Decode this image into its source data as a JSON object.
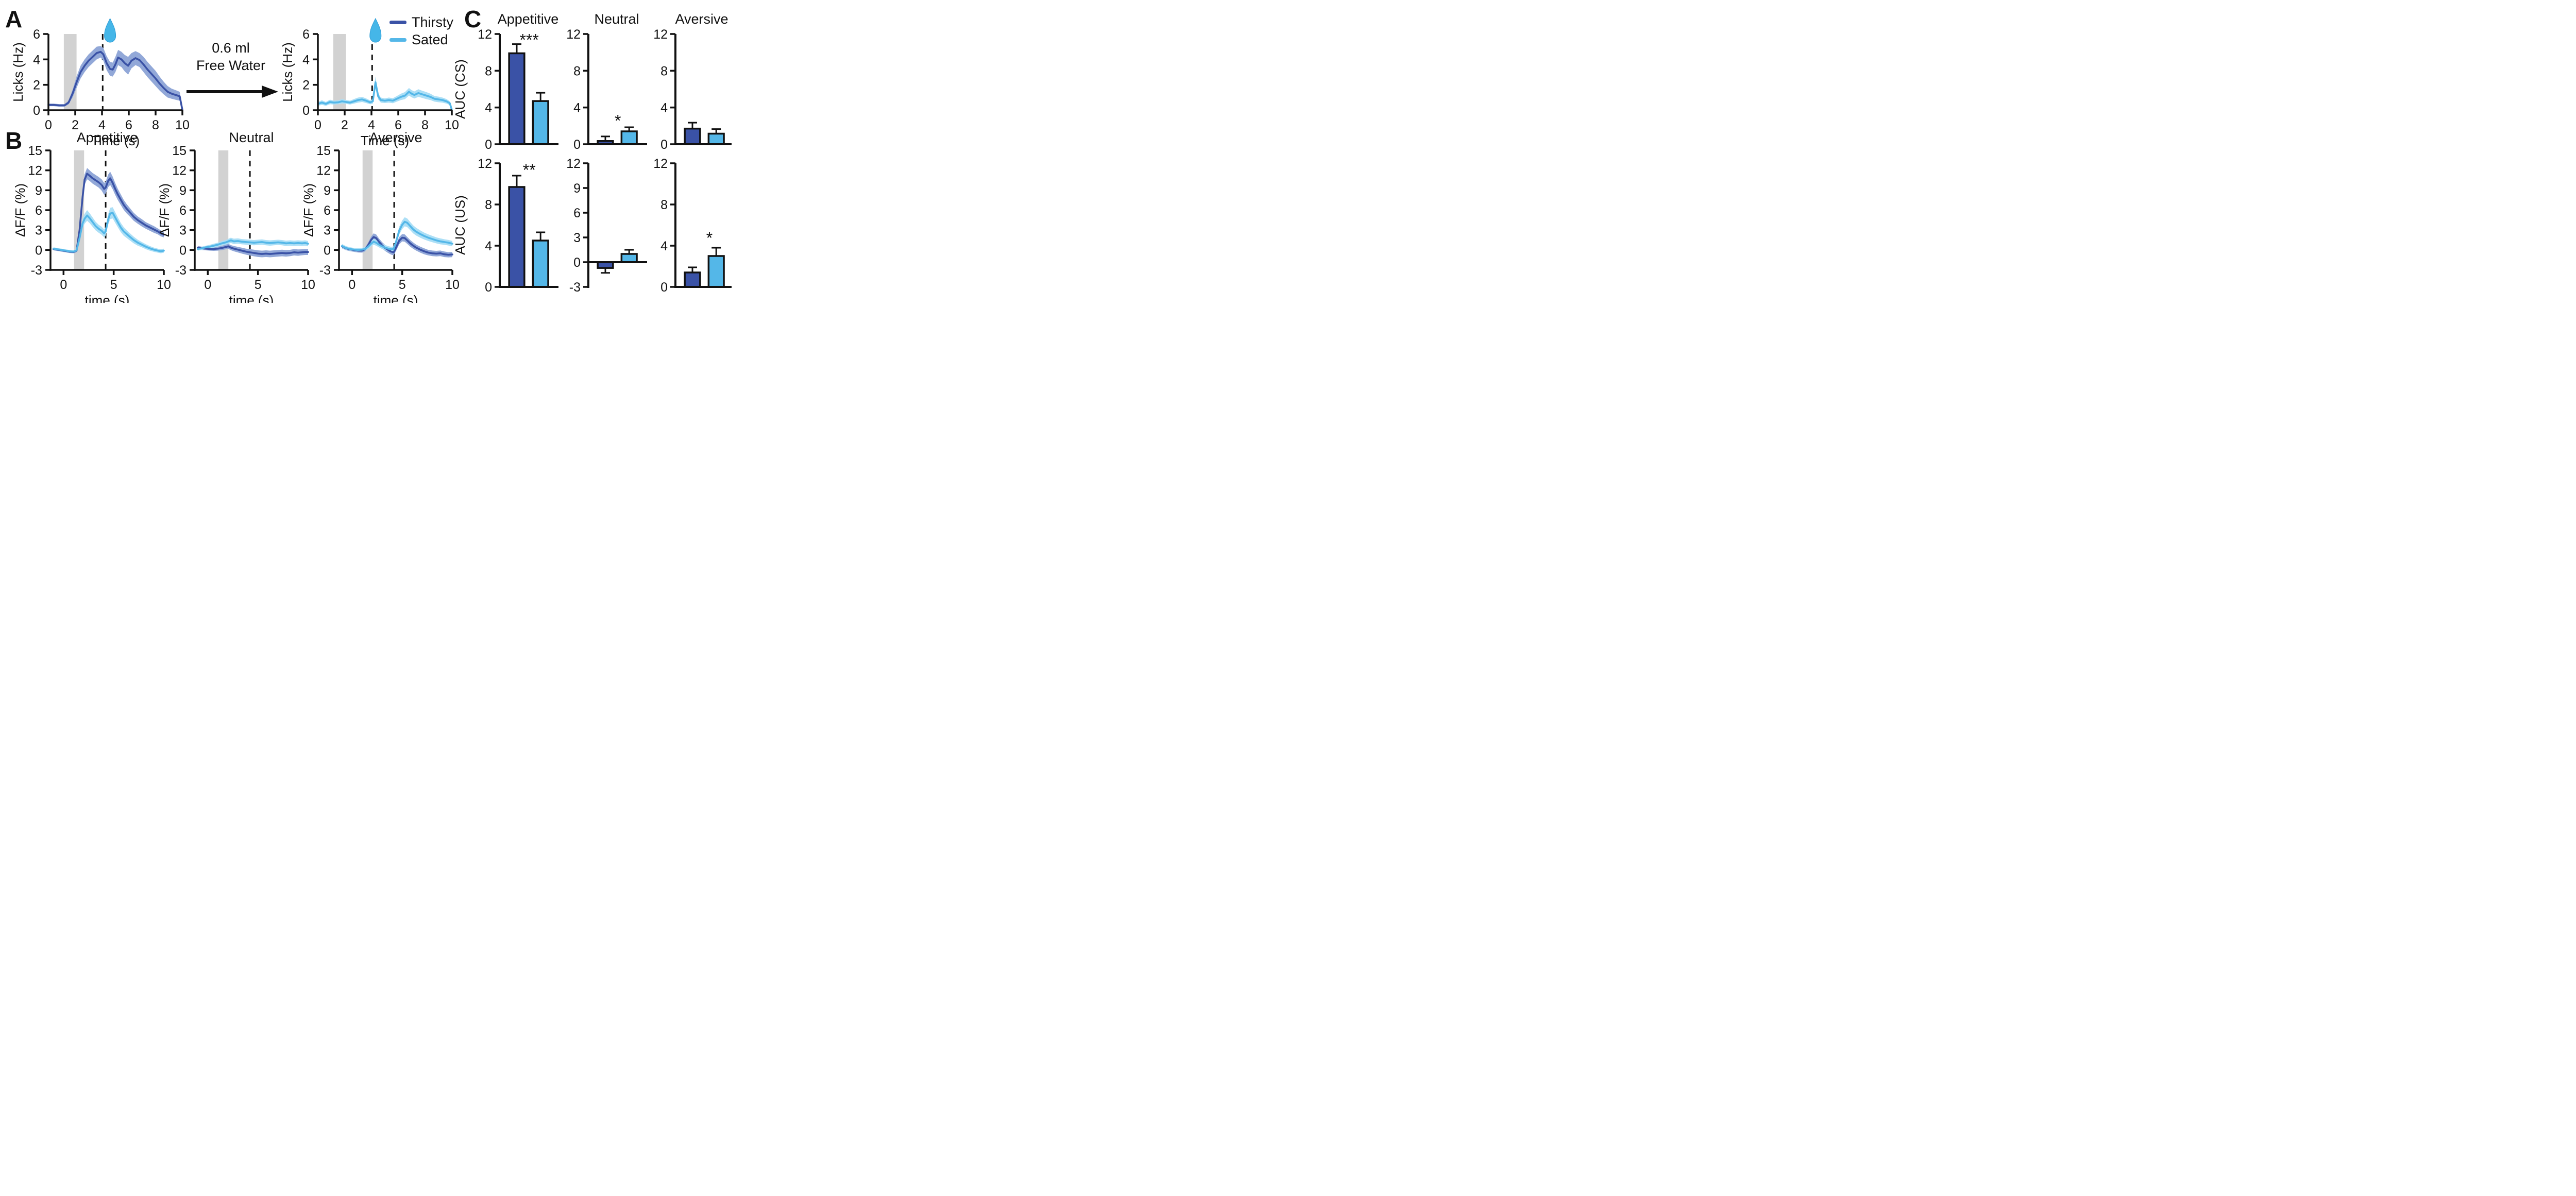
{
  "panels": {
    "a": {
      "label": "A"
    },
    "b": {
      "label": "B",
      "titles": [
        "Appetitive",
        "Neutral",
        "Aversive"
      ]
    },
    "c": {
      "label": "C",
      "titles": [
        "Appetitive",
        "Neutral",
        "Aversive"
      ],
      "row_labels": [
        "AUC (CS)",
        "AUC (US)"
      ]
    }
  },
  "transition": {
    "line1": "0.6 ml",
    "line2": "Free Water"
  },
  "legend": {
    "items": [
      {
        "label": "Thirsty",
        "color": "#3A52A6"
      },
      {
        "label": "Sated",
        "color": "#54B7E8"
      }
    ]
  },
  "colors": {
    "thirsty": "#3A52A6",
    "thirsty_band": "#92A8D8",
    "sated": "#54B7E8",
    "sated_band": "#ACDFF6",
    "cs_band": "#D2D2D2",
    "axis": "#111111",
    "droplet": "#45B6E8"
  },
  "chart_data": [
    {
      "id": "licks-thirsty",
      "type": "line",
      "title": "",
      "xlabel": "Time (s)",
      "ylabel": "Licks (Hz)",
      "xlim": [
        0,
        10
      ],
      "ylim": [
        0,
        6
      ],
      "xticks": [
        0,
        2,
        4,
        6,
        8,
        10
      ],
      "yticks": [
        0,
        2,
        4,
        6
      ],
      "cs_window": [
        1.15,
        2.1
      ],
      "us_line": 4.05,
      "droplet_t": 4.6,
      "x": [
        0,
        0.4,
        0.8,
        1.2,
        1.5,
        1.8,
        2.1,
        2.4,
        2.7,
        3,
        3.3,
        3.6,
        3.9,
        4.1,
        4.35,
        4.6,
        4.8,
        5,
        5.2,
        5.45,
        5.7,
        5.95,
        6.2,
        6.5,
        6.8,
        7.1,
        7.4,
        7.7,
        8,
        8.3,
        8.6,
        8.9,
        9.2,
        9.5,
        9.8,
        10
      ],
      "series": [
        {
          "name": "Thirsty",
          "color_key": "thirsty",
          "y": [
            0.42,
            0.42,
            0.38,
            0.38,
            0.6,
            1.3,
            2.2,
            3,
            3.5,
            3.9,
            4.2,
            4.5,
            4.6,
            4.4,
            3.7,
            3.25,
            3.2,
            3.6,
            4.15,
            4,
            3.7,
            3.5,
            3.9,
            4.1,
            3.95,
            3.6,
            3.2,
            2.85,
            2.5,
            2.1,
            1.75,
            1.45,
            1.3,
            1.2,
            1.1,
            0.02
          ],
          "sem": [
            0.1,
            0.1,
            0.1,
            0.1,
            0.15,
            0.3,
            0.45,
            0.5,
            0.5,
            0.5,
            0.5,
            0.5,
            0.45,
            0.5,
            0.55,
            0.55,
            0.55,
            0.6,
            0.6,
            0.6,
            0.65,
            0.7,
            0.6,
            0.55,
            0.55,
            0.6,
            0.6,
            0.6,
            0.6,
            0.55,
            0.5,
            0.45,
            0.4,
            0.38,
            0.35,
            0.02
          ]
        }
      ]
    },
    {
      "id": "licks-sated",
      "type": "line",
      "title": "",
      "xlabel": "Time (s)",
      "ylabel": "Licks (Hz)",
      "xlim": [
        0,
        10
      ],
      "ylim": [
        0,
        6
      ],
      "xticks": [
        0,
        2,
        4,
        6,
        8,
        10
      ],
      "yticks": [
        0,
        2,
        4,
        6
      ],
      "cs_window": [
        1.15,
        2.1
      ],
      "us_line": 4.05,
      "droplet_t": 4.3,
      "x": [
        0,
        0.3,
        0.6,
        0.9,
        1.2,
        1.5,
        1.8,
        2.1,
        2.4,
        2.7,
        3,
        3.3,
        3.6,
        3.9,
        4.1,
        4.3,
        4.5,
        4.7,
        5,
        5.3,
        5.6,
        5.9,
        6.2,
        6.5,
        6.8,
        7,
        7.2,
        7.5,
        7.8,
        8.1,
        8.4,
        8.7,
        9,
        9.3,
        9.6,
        9.85,
        10
      ],
      "series": [
        {
          "name": "Sated",
          "color_key": "sated",
          "y": [
            0.5,
            0.6,
            0.5,
            0.65,
            0.6,
            0.62,
            0.7,
            0.65,
            0.6,
            0.7,
            0.8,
            0.85,
            0.75,
            0.62,
            0.7,
            2.2,
            1.1,
            0.8,
            0.75,
            0.8,
            0.75,
            0.9,
            1.05,
            1.15,
            1.45,
            1.3,
            1.2,
            1.35,
            1.25,
            1.15,
            1.05,
            0.9,
            0.85,
            0.8,
            0.7,
            0.55,
            0.03
          ],
          "sem": [
            0.15,
            0.18,
            0.15,
            0.18,
            0.15,
            0.15,
            0.18,
            0.15,
            0.15,
            0.18,
            0.2,
            0.2,
            0.18,
            0.15,
            0.18,
            0.45,
            0.25,
            0.2,
            0.18,
            0.2,
            0.2,
            0.22,
            0.25,
            0.28,
            0.3,
            0.28,
            0.28,
            0.3,
            0.28,
            0.28,
            0.25,
            0.22,
            0.22,
            0.2,
            0.18,
            0.15,
            0.03
          ]
        }
      ]
    },
    {
      "id": "dff-appetitive",
      "type": "line",
      "title": "Appetitive",
      "xlabel": "time (s)",
      "ylabel": "ΔF/F (%)",
      "xlim": [
        -1.3,
        10
      ],
      "ylim": [
        -3,
        15
      ],
      "xticks": [
        0,
        5,
        10
      ],
      "yticks": [
        -3,
        0,
        3,
        6,
        9,
        12,
        15
      ],
      "cs_window": [
        1.05,
        2.05
      ],
      "us_line": 4.2,
      "droplet_t": null,
      "x": [
        -1,
        -0.6,
        -0.2,
        0.2,
        0.6,
        1,
        1.3,
        1.6,
        1.9,
        2.1,
        2.35,
        2.6,
        2.9,
        3.2,
        3.5,
        3.8,
        4.05,
        4.2,
        4.45,
        4.65,
        4.9,
        5.15,
        5.4,
        5.7,
        6,
        6.3,
        6.6,
        7,
        7.4,
        7.8,
        8.2,
        8.6,
        9,
        9.4,
        9.7,
        10
      ],
      "series": [
        {
          "name": "Thirsty",
          "color_key": "thirsty",
          "y": [
            0.15,
            0.05,
            -0.05,
            -0.15,
            -0.25,
            -0.3,
            -0.1,
            3,
            8,
            10.6,
            11.5,
            11.2,
            10.8,
            10.5,
            10.2,
            9.8,
            9.2,
            9.4,
            10.4,
            10.8,
            10.1,
            9.2,
            8.4,
            7.6,
            6.8,
            6.2,
            5.7,
            5,
            4.5,
            4.1,
            3.7,
            3.4,
            3.1,
            2.8,
            2.5,
            2.3
          ],
          "sem": [
            0.2,
            0.2,
            0.2,
            0.2,
            0.2,
            0.2,
            0.25,
            0.6,
            0.8,
            0.8,
            0.85,
            0.8,
            0.8,
            0.8,
            0.8,
            0.85,
            0.9,
            0.9,
            0.95,
            1,
            0.95,
            0.9,
            0.85,
            0.8,
            0.75,
            0.7,
            0.65,
            0.6,
            0.55,
            0.55,
            0.5,
            0.5,
            0.5,
            0.45,
            0.45,
            0.4
          ]
        },
        {
          "name": "Sated",
          "color_key": "sated",
          "y": [
            0.2,
            0.1,
            0,
            -0.1,
            -0.2,
            -0.25,
            -0.05,
            1.8,
            4,
            4.7,
            5.2,
            4.8,
            4.2,
            3.6,
            3.2,
            2.9,
            2.5,
            2.8,
            4.6,
            5.5,
            5.6,
            4.9,
            4.2,
            3.4,
            2.8,
            2.4,
            2,
            1.5,
            1.1,
            0.8,
            0.5,
            0.25,
            0.05,
            -0.1,
            -0.2,
            -0.1
          ],
          "sem": [
            0.2,
            0.2,
            0.2,
            0.2,
            0.2,
            0.2,
            0.25,
            0.5,
            0.7,
            0.75,
            0.8,
            0.75,
            0.7,
            0.65,
            0.6,
            0.6,
            0.6,
            0.65,
            0.8,
            0.85,
            0.85,
            0.8,
            0.75,
            0.7,
            0.65,
            0.6,
            0.55,
            0.5,
            0.45,
            0.4,
            0.38,
            0.35,
            0.32,
            0.3,
            0.3,
            0.3
          ]
        }
      ]
    },
    {
      "id": "dff-neutral",
      "type": "line",
      "title": "Neutral",
      "xlabel": "time (s)",
      "ylabel": "ΔF/F (%)",
      "xlim": [
        -1.3,
        10
      ],
      "ylim": [
        -3,
        15
      ],
      "xticks": [
        0,
        5,
        10
      ],
      "yticks": [
        -3,
        0,
        3,
        6,
        9,
        12,
        15
      ],
      "cs_window": [
        1.05,
        2.05
      ],
      "us_line": 4.2,
      "droplet_t": null,
      "x": [
        -1,
        -0.6,
        -0.2,
        0.2,
        0.6,
        1,
        1.4,
        1.8,
        2.05,
        2.3,
        2.6,
        3,
        3.4,
        3.8,
        4.2,
        4.6,
        5,
        5.4,
        5.8,
        6.2,
        6.6,
        7,
        7.4,
        7.8,
        8.2,
        8.6,
        9,
        9.4,
        9.7,
        10
      ],
      "series": [
        {
          "name": "Thirsty",
          "color_key": "thirsty",
          "y": [
            0.35,
            0.25,
            0.2,
            0.15,
            0.15,
            0.2,
            0.3,
            0.45,
            0.55,
            0.35,
            0.2,
            0.05,
            -0.1,
            -0.25,
            -0.35,
            -0.45,
            -0.55,
            -0.6,
            -0.55,
            -0.6,
            -0.55,
            -0.5,
            -0.45,
            -0.5,
            -0.45,
            -0.35,
            -0.4,
            -0.35,
            -0.3,
            -0.3
          ],
          "sem": [
            0.25,
            0.25,
            0.25,
            0.25,
            0.28,
            0.3,
            0.32,
            0.35,
            0.38,
            0.38,
            0.4,
            0.42,
            0.45,
            0.45,
            0.48,
            0.5,
            0.5,
            0.5,
            0.5,
            0.5,
            0.5,
            0.5,
            0.5,
            0.5,
            0.48,
            0.48,
            0.48,
            0.45,
            0.45,
            0.45
          ]
        },
        {
          "name": "Sated",
          "color_key": "sated",
          "y": [
            0.15,
            0.25,
            0.4,
            0.5,
            0.65,
            0.8,
            1,
            1.15,
            1.3,
            1.45,
            1.3,
            1.35,
            1.25,
            1.2,
            1.15,
            1.1,
            1.15,
            1.2,
            1.1,
            1.05,
            1.1,
            1.15,
            1.1,
            1,
            1.05,
            1,
            1.05,
            1,
            1.05,
            0.95
          ],
          "sem": [
            0.25,
            0.25,
            0.25,
            0.28,
            0.3,
            0.3,
            0.32,
            0.35,
            0.38,
            0.4,
            0.4,
            0.4,
            0.4,
            0.4,
            0.4,
            0.4,
            0.4,
            0.4,
            0.4,
            0.4,
            0.4,
            0.4,
            0.4,
            0.4,
            0.4,
            0.4,
            0.4,
            0.4,
            0.4,
            0.4
          ]
        }
      ]
    },
    {
      "id": "dff-aversive",
      "type": "line",
      "title": "Aversive",
      "xlabel": "time (s)",
      "ylabel": "ΔF/F (%)",
      "xlim": [
        -1.3,
        10
      ],
      "ylim": [
        -3,
        15
      ],
      "xticks": [
        0,
        5,
        10
      ],
      "yticks": [
        -3,
        0,
        3,
        6,
        9,
        12,
        15
      ],
      "cs_window": [
        1.05,
        2.05
      ],
      "us_line": 4.2,
      "droplet_t": null,
      "x": [
        -1,
        -0.6,
        -0.2,
        0.2,
        0.6,
        1,
        1.3,
        1.6,
        1.9,
        2.15,
        2.4,
        2.7,
        3,
        3.3,
        3.6,
        3.9,
        4.15,
        4.4,
        4.7,
        5,
        5.25,
        5.5,
        5.8,
        6.1,
        6.4,
        6.8,
        7.2,
        7.6,
        8,
        8.4,
        8.8,
        9.2,
        9.6,
        10
      ],
      "series": [
        {
          "name": "Thirsty",
          "color_key": "thirsty",
          "y": [
            0.55,
            0.25,
            0.1,
            0,
            -0.1,
            -0.1,
            0.1,
            0.7,
            1.5,
            1.95,
            1.8,
            1.2,
            0.7,
            0.3,
            0,
            -0.25,
            -0.35,
            0.4,
            1.4,
            1.85,
            1.8,
            1.45,
            1,
            0.65,
            0.35,
            0.05,
            -0.2,
            -0.4,
            -0.5,
            -0.55,
            -0.5,
            -0.65,
            -0.72,
            -0.68
          ],
          "sem": [
            0.3,
            0.28,
            0.28,
            0.28,
            0.28,
            0.3,
            0.32,
            0.4,
            0.5,
            0.55,
            0.55,
            0.5,
            0.48,
            0.45,
            0.45,
            0.45,
            0.45,
            0.5,
            0.55,
            0.55,
            0.55,
            0.52,
            0.5,
            0.48,
            0.45,
            0.45,
            0.45,
            0.42,
            0.42,
            0.42,
            0.42,
            0.42,
            0.4,
            0.4
          ]
        },
        {
          "name": "Sated",
          "color_key": "sated",
          "y": [
            0.6,
            0.3,
            0.15,
            0.05,
            0,
            0.05,
            0.15,
            0.5,
            0.95,
            1.25,
            1.1,
            0.8,
            0.55,
            0.35,
            0.2,
            0.1,
            0.15,
            1.3,
            2.9,
            3.8,
            4.25,
            4.1,
            3.6,
            3.1,
            2.75,
            2.4,
            2.1,
            1.85,
            1.65,
            1.45,
            1.3,
            1.2,
            1.1,
            0.95
          ],
          "sem": [
            0.3,
            0.28,
            0.26,
            0.26,
            0.26,
            0.28,
            0.3,
            0.35,
            0.42,
            0.45,
            0.45,
            0.42,
            0.4,
            0.4,
            0.38,
            0.38,
            0.4,
            0.5,
            0.6,
            0.65,
            0.68,
            0.65,
            0.62,
            0.6,
            0.58,
            0.55,
            0.52,
            0.5,
            0.48,
            0.45,
            0.45,
            0.42,
            0.42,
            0.4
          ]
        }
      ]
    },
    {
      "id": "auc-cs-appetitive",
      "type": "bar",
      "title": "Appetitive",
      "ylabel": "AUC (CS)",
      "ylim": [
        0,
        12
      ],
      "yticks": [
        0,
        4,
        8,
        12
      ],
      "categories": [
        "Thirsty",
        "Sated"
      ],
      "values": [
        9.9,
        4.7
      ],
      "errors": [
        1.0,
        0.9
      ],
      "significance": "***",
      "sig_y": 11.3,
      "sig_x": 0.52
    },
    {
      "id": "auc-cs-neutral",
      "type": "bar",
      "title": "Neutral",
      "ylabel": "AUC (CS)",
      "ylim": [
        0,
        12
      ],
      "yticks": [
        0,
        4,
        8,
        12
      ],
      "categories": [
        "Thirsty",
        "Sated"
      ],
      "values": [
        0.35,
        1.4
      ],
      "errors": [
        0.5,
        0.45
      ],
      "significance": "*",
      "sig_y": 2.5,
      "sig_x": 0.52
    },
    {
      "id": "auc-cs-aversive",
      "type": "bar",
      "title": "Aversive",
      "ylabel": "AUC (CS)",
      "ylim": [
        0,
        12
      ],
      "yticks": [
        0,
        4,
        8,
        12
      ],
      "categories": [
        "Thirsty",
        "Sated"
      ],
      "values": [
        1.7,
        1.15
      ],
      "errors": [
        0.65,
        0.5
      ],
      "significance": null,
      "sig_y": null,
      "sig_x": null
    },
    {
      "id": "auc-us-appetitive",
      "type": "bar",
      "title": "Appetitive",
      "ylabel": "AUC (US)",
      "ylim": [
        0,
        12
      ],
      "yticks": [
        0,
        4,
        8,
        12
      ],
      "categories": [
        "Thirsty",
        "Sated"
      ],
      "values": [
        9.7,
        4.5
      ],
      "errors": [
        1.1,
        0.8
      ],
      "significance": "**",
      "sig_y": 11.3,
      "sig_x": 0.52
    },
    {
      "id": "auc-us-neutral",
      "type": "bar",
      "title": "Neutral",
      "ylabel": "AUC (US)",
      "ylim": [
        -3,
        12
      ],
      "yticks": [
        -3,
        0,
        3,
        6,
        9,
        12
      ],
      "categories": [
        "Thirsty",
        "Sated"
      ],
      "values": [
        -0.7,
        1.0
      ],
      "errors": [
        0.6,
        0.5
      ],
      "significance": null,
      "sig_y": null,
      "sig_x": null
    },
    {
      "id": "auc-us-aversive",
      "type": "bar",
      "title": "Aversive",
      "ylabel": "AUC (US)",
      "ylim": [
        0,
        12
      ],
      "yticks": [
        0,
        4,
        8,
        12
      ],
      "categories": [
        "Thirsty",
        "Sated"
      ],
      "values": [
        1.4,
        3.0
      ],
      "errors": [
        0.5,
        0.8
      ],
      "significance": "*",
      "sig_y": 4.7,
      "sig_x": 0.6
    }
  ]
}
